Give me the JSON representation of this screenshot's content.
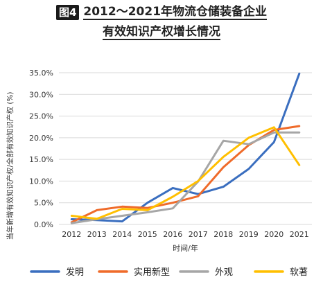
{
  "header": {
    "figure_badge": "图4",
    "title_line1": "2012～2021年物流仓储装备企业",
    "title_line2": "有效知识产权增长情况"
  },
  "chart_data": {
    "type": "line",
    "title": "2012～2021年物流仓储装备企业有效知识产权增长情况",
    "xlabel": "时间/年",
    "ylabel": "当年新增有效知识产权/全部有效知识产权 (%)",
    "categories": [
      "2012",
      "2013",
      "2014",
      "2015",
      "2016",
      "2017",
      "2018",
      "2019",
      "2020",
      "2021"
    ],
    "ylim": [
      0,
      35
    ],
    "yticks": [
      "0.0%",
      "5.0%",
      "10.0%",
      "15.0%",
      "20.0%",
      "25.0%",
      "30.0%",
      "35.0%"
    ],
    "grid": true,
    "legend_position": "bottom",
    "series": [
      {
        "name": "发明",
        "color": "#3a6ebf",
        "values": [
          1.2,
          1.0,
          0.7,
          5.0,
          8.4,
          7.0,
          8.7,
          12.8,
          19.0,
          34.8
        ]
      },
      {
        "name": "实用新型",
        "color": "#ef6b2a",
        "values": [
          0.5,
          3.3,
          4.1,
          3.8,
          5.0,
          6.5,
          13.2,
          18.3,
          21.8,
          22.7
        ]
      },
      {
        "name": "外观",
        "color": "#a6a6a6",
        "values": [
          0.3,
          1.2,
          2.0,
          2.8,
          3.7,
          9.9,
          19.3,
          18.5,
          21.2,
          21.2
        ]
      },
      {
        "name": "软著",
        "color": "#ffbf00",
        "values": [
          2.0,
          1.3,
          3.6,
          3.3,
          6.4,
          10.0,
          15.6,
          20.0,
          22.4,
          13.7
        ]
      }
    ]
  }
}
